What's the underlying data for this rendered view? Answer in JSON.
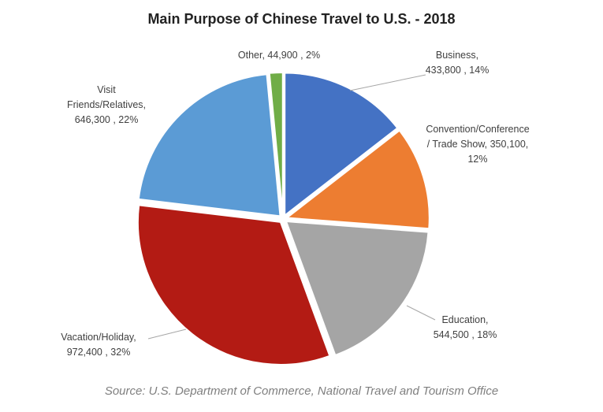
{
  "chart_data": {
    "type": "pie",
    "title": "Main Purpose of Chinese Travel to U.S. - 2018",
    "source": "Source: U.S. Department of Commerce, National Travel and Tourism Office",
    "colors": {
      "Business": "#4472C4",
      "Convention/Conference / Trade Show": "#ED7D31",
      "Education": "#A5A5A5",
      "Vacation/Holiday": "#B31B14",
      "Visit Friends/Relatives": "#5B9BD5",
      "Other": "#70AD47"
    },
    "slices": [
      {
        "name": "Business",
        "value": 433800,
        "percent": 14,
        "label_lines": [
          "Business,",
          "433,800 , 14%"
        ]
      },
      {
        "name": "Convention/Conference / Trade Show",
        "value": 350100,
        "percent": 12,
        "label_lines": [
          "Convention/Conference",
          "/ Trade Show, 350,100,",
          "12%"
        ]
      },
      {
        "name": "Education",
        "value": 544500,
        "percent": 18,
        "label_lines": [
          "Education,",
          "544,500 , 18%"
        ]
      },
      {
        "name": "Vacation/Holiday",
        "value": 972400,
        "percent": 32,
        "label_lines": [
          "Vacation/Holiday,",
          "972,400 , 32%"
        ]
      },
      {
        "name": "Visit Friends/Relatives",
        "value": 646300,
        "percent": 22,
        "label_lines": [
          "Visit",
          "Friends/Relatives,",
          "646,300 , 22%"
        ]
      },
      {
        "name": "Other",
        "value": 44900,
        "percent": 2,
        "label_lines": [
          "Other, 44,900 , 2%"
        ]
      }
    ]
  }
}
